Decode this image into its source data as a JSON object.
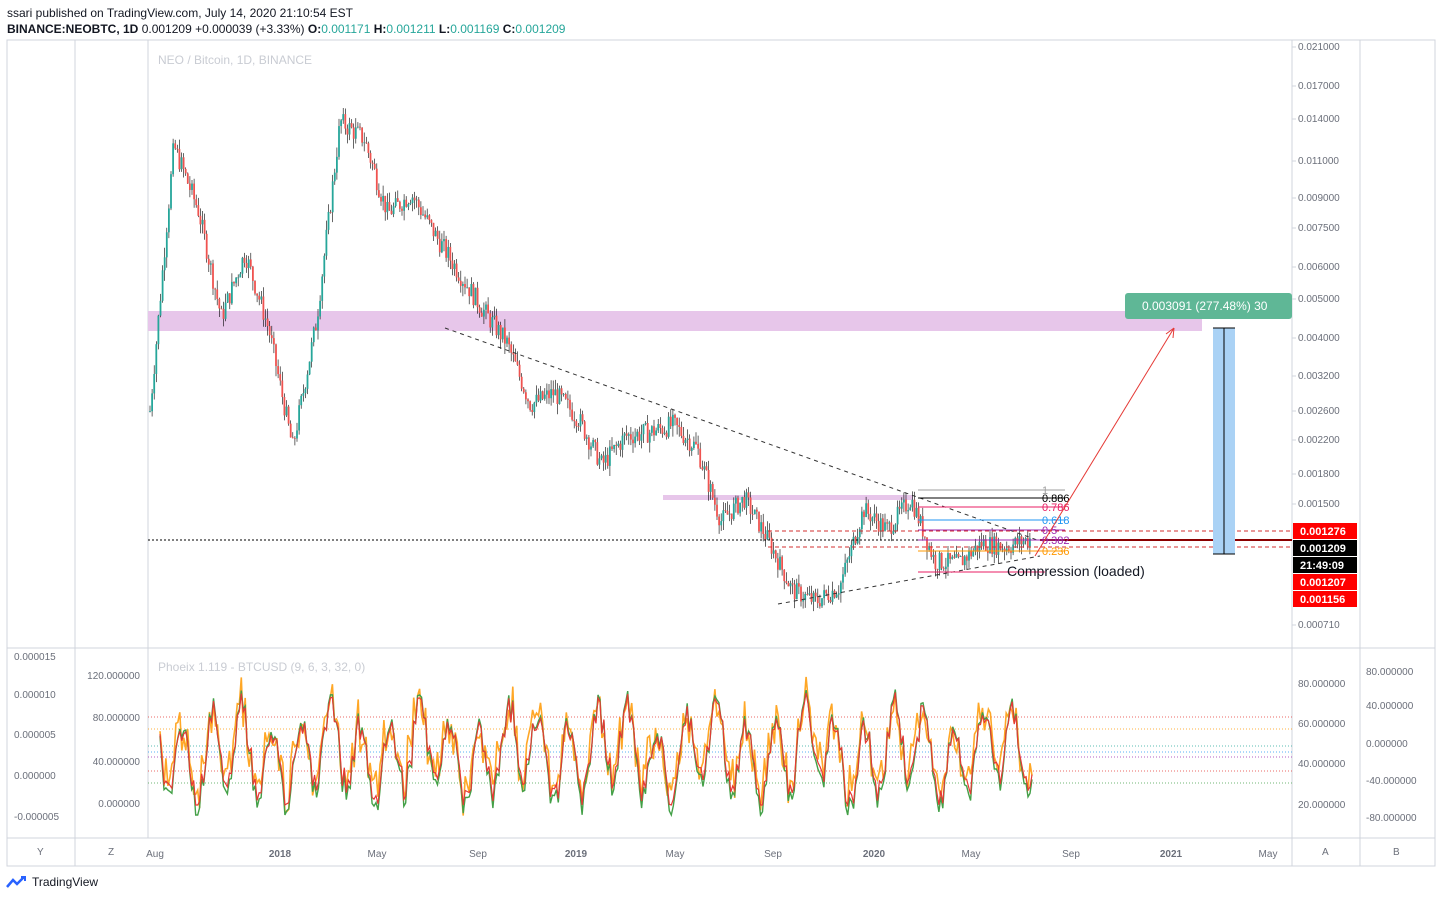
{
  "header": {
    "published": "ssari published on TradingView.com, July 14, 2020 21:10:54 EST",
    "symbol": "BINANCE:NEOBTC, 1D",
    "last": "0.001209",
    "change": "+0.000039 (+3.33%)",
    "o_label": "O:",
    "o": "0.001171",
    "h_label": "H:",
    "h": "0.001211",
    "l_label": "L:",
    "l": "0.001169",
    "c_label": "C:",
    "c": "0.001209"
  },
  "footer": {
    "brand": "TradingView"
  },
  "chart_data": [
    {
      "type": "candlestick",
      "title": "NEO / Bitcoin, 1D, BINANCE",
      "scale": "log",
      "x_ticks": [
        "Aug",
        "2018",
        "May",
        "Sep",
        "2019",
        "May",
        "Sep",
        "2020",
        "May",
        "Sep",
        "2021",
        "May"
      ],
      "y_ticks": [
        "0.021000",
        "0.017000",
        "0.014000",
        "0.011000",
        "0.009000",
        "0.007500",
        "0.006000",
        "0.005000",
        "0.004000",
        "0.003200",
        "0.002600",
        "0.002200",
        "0.001800",
        "0.001500",
        "0.000710"
      ],
      "ylim": [
        0.00064,
        0.0222
      ],
      "close_path": [
        [
          "Aug",
          0.0026
        ],
        [
          "Aug",
          0.012
        ],
        [
          "Aug",
          0.0085
        ],
        [
          "Aug",
          0.0045
        ],
        [
          "Aug",
          0.0065
        ],
        [
          "2018",
          0.0042
        ],
        [
          "2018",
          0.0021
        ],
        [
          "2018",
          0.0044
        ],
        [
          "2018",
          0.0138
        ],
        [
          "2018",
          0.0125
        ],
        [
          "May",
          0.0082
        ],
        [
          "May",
          0.0092
        ],
        [
          "May",
          0.0072
        ],
        [
          "May",
          0.0058
        ],
        [
          "May",
          0.0047
        ],
        [
          "Sep",
          0.0039
        ],
        [
          "Sep",
          0.0027
        ],
        [
          "Sep",
          0.0029
        ],
        [
          "Sep",
          0.0025
        ],
        [
          "2019",
          0.0019
        ],
        [
          "2019",
          0.00225
        ],
        [
          "2019",
          0.0023
        ],
        [
          "2019",
          0.0024
        ],
        [
          "May",
          0.0021
        ],
        [
          "May",
          0.00135
        ],
        [
          "May",
          0.00155
        ],
        [
          "May",
          0.0012
        ],
        [
          "Sep",
          0.00088
        ],
        [
          "Sep",
          0.00082
        ],
        [
          "Sep",
          0.0009
        ],
        [
          "2020",
          0.00145
        ],
        [
          "2020",
          0.00128
        ],
        [
          "2020",
          0.00155
        ],
        [
          "2020",
          0.00105
        ],
        [
          "May",
          0.00104
        ],
        [
          "May",
          0.00118
        ],
        [
          "May",
          0.00115
        ],
        [
          "Sep",
          0.00121
        ]
      ],
      "price_labels": [
        {
          "value": "0.001276",
          "color": "#ff0000"
        },
        {
          "value": "0.001209",
          "color": "#000000"
        },
        {
          "value": "21:49:09",
          "color": "#000000"
        },
        {
          "value": "0.001207",
          "color": "#ff0000"
        },
        {
          "value": "0.001156",
          "color": "#ff0000"
        }
      ],
      "fib_levels": [
        "1",
        "0.886",
        "0.786",
        "0.618",
        "0.5",
        "0.382",
        "0.236"
      ],
      "target_box": "0.003091 (277.48%) 30",
      "annotation": "Compression (loaded)",
      "colors": {
        "up": "#26a69a",
        "down": "#ef5350",
        "zone": "#e7c6ea",
        "target": "#5fb796",
        "measure": "#aad2f5"
      }
    },
    {
      "type": "line",
      "title": "Phoeix 1.119 - BTCUSD (9, 6, 3, 32, 0)",
      "left_ticks": [
        "0.000015",
        "0.000010",
        "0.000005",
        "0.000000",
        "-0.000005"
      ],
      "inner_ticks": [
        "120.000000",
        "80.000000",
        "40.000000",
        "0.000000"
      ],
      "right_ticks_a": [
        "80.000000",
        "60.000000",
        "40.000000",
        "20.000000"
      ],
      "right_ticks_b": [
        "80.000000",
        "40.000000",
        "0.000000",
        "-40.000000",
        "-80.000000"
      ],
      "series": [
        {
          "color": "#ffa726"
        },
        {
          "color": "#43a047"
        },
        {
          "color": "#e53935"
        }
      ]
    }
  ],
  "bottom_toolbar": {
    "y": "Y",
    "z": "Z",
    "a": "A",
    "b": "B"
  }
}
